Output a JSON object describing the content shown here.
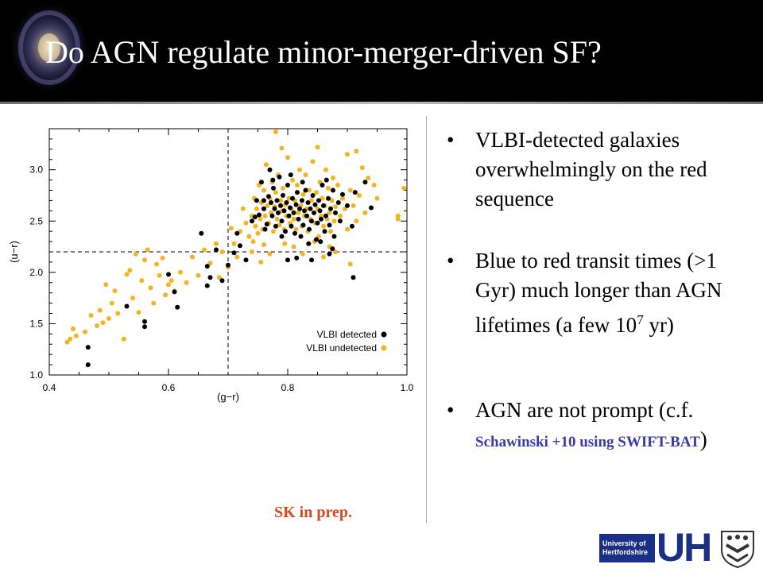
{
  "slide": {
    "title": "Do AGN regulate minor-merger-driven SF?",
    "bullets": [
      {
        "text": "VLBI-detected galaxies overwhelmingly on the red sequence"
      },
      {
        "text_before": "Blue to red transit times (>1 Gyr) much longer than AGN lifetimes (a few 10",
        "superscript": "7",
        "text_after": " yr)"
      },
      {
        "text": "AGN are not prompt (c.f. ",
        "citation": "Schawinski +10 using SWIFT-BAT",
        "text_after": ")"
      }
    ],
    "bullet_glyph": "•",
    "credit": "SK in prep.",
    "logo": {
      "block_line1": "University of",
      "block_line2": "Hertfordshire",
      "letters": "UH",
      "crest_icon": "crest-icon"
    },
    "colors": {
      "header_bg": "#000000",
      "title": "#ffffff",
      "credit": "#d64820",
      "citation": "#3a3aa8",
      "logo_blue": "#1a2f86"
    }
  },
  "chart_data": {
    "type": "scatter",
    "xlabel": "(g−r)",
    "ylabel": "(u−r)",
    "xlim": [
      0.4,
      1.0
    ],
    "ylim": [
      1.0,
      3.4
    ],
    "xticks": [
      0.4,
      0.6,
      0.8,
      1.0
    ],
    "yticks": [
      1.0,
      1.5,
      2.0,
      2.5,
      3.0
    ],
    "xtick_labels": [
      "0.4",
      "0.6",
      "0.8",
      "1.0"
    ],
    "ytick_labels": [
      "1.0",
      "1.5",
      "2.0",
      "2.5",
      "3.0"
    ],
    "reference_lines": {
      "x": 0.7,
      "y": 2.2
    },
    "legend_position": "bottom-right",
    "series": [
      {
        "name": "VLBI detected",
        "color": "#000000",
        "points": [
          [
            0.465,
            1.27
          ],
          [
            0.465,
            1.1
          ],
          [
            0.53,
            1.67
          ],
          [
            0.56,
            1.52
          ],
          [
            0.56,
            1.47
          ],
          [
            0.6,
            1.98
          ],
          [
            0.61,
            1.81
          ],
          [
            0.615,
            1.66
          ],
          [
            0.655,
            2.38
          ],
          [
            0.665,
            2.06
          ],
          [
            0.665,
            1.87
          ],
          [
            0.67,
            1.95
          ],
          [
            0.68,
            2.22
          ],
          [
            0.69,
            1.92
          ],
          [
            0.7,
            2.07
          ],
          [
            0.71,
            2.19
          ],
          [
            0.715,
            2.38
          ],
          [
            0.72,
            2.26
          ],
          [
            0.73,
            2.12
          ],
          [
            0.74,
            2.5
          ],
          [
            0.745,
            2.54
          ],
          [
            0.748,
            2.7
          ],
          [
            0.752,
            2.56
          ],
          [
            0.756,
            2.88
          ],
          [
            0.76,
            2.62
          ],
          [
            0.762,
            2.42
          ],
          [
            0.765,
            2.47
          ],
          [
            0.768,
            2.74
          ],
          [
            0.77,
            3.0
          ],
          [
            0.772,
            2.68
          ],
          [
            0.774,
            2.55
          ],
          [
            0.776,
            2.82
          ],
          [
            0.778,
            2.62
          ],
          [
            0.78,
            2.45
          ],
          [
            0.782,
            2.7
          ],
          [
            0.784,
            2.58
          ],
          [
            0.786,
            2.93
          ],
          [
            0.788,
            2.65
          ],
          [
            0.79,
            2.5
          ],
          [
            0.792,
            2.75
          ],
          [
            0.794,
            2.6
          ],
          [
            0.796,
            2.4
          ],
          [
            0.798,
            2.68
          ],
          [
            0.8,
            2.85
          ],
          [
            0.802,
            2.55
          ],
          [
            0.804,
            2.63
          ],
          [
            0.806,
            2.45
          ],
          [
            0.808,
            2.72
          ],
          [
            0.81,
            2.58
          ],
          [
            0.812,
            2.38
          ],
          [
            0.814,
            2.66
          ],
          [
            0.816,
            2.78
          ],
          [
            0.818,
            2.52
          ],
          [
            0.82,
            2.62
          ],
          [
            0.822,
            2.35
          ],
          [
            0.824,
            2.7
          ],
          [
            0.826,
            2.46
          ],
          [
            0.828,
            2.6
          ],
          [
            0.83,
            2.8
          ],
          [
            0.832,
            2.55
          ],
          [
            0.834,
            2.68
          ],
          [
            0.836,
            2.42
          ],
          [
            0.838,
            2.62
          ],
          [
            0.84,
            2.5
          ],
          [
            0.842,
            2.75
          ],
          [
            0.844,
            2.58
          ],
          [
            0.846,
            2.66
          ],
          [
            0.848,
            2.32
          ],
          [
            0.85,
            2.48
          ],
          [
            0.852,
            2.7
          ],
          [
            0.854,
            2.6
          ],
          [
            0.856,
            2.52
          ],
          [
            0.858,
            2.85
          ],
          [
            0.86,
            2.65
          ],
          [
            0.862,
            2.4
          ],
          [
            0.864,
            2.55
          ],
          [
            0.868,
            2.72
          ],
          [
            0.87,
            2.46
          ],
          [
            0.872,
            2.62
          ],
          [
            0.876,
            2.8
          ],
          [
            0.878,
            2.35
          ],
          [
            0.88,
            2.58
          ],
          [
            0.885,
            2.68
          ],
          [
            0.888,
            2.5
          ],
          [
            0.892,
            2.76
          ],
          [
            0.9,
            2.65
          ],
          [
            0.908,
            2.45
          ],
          [
            0.913,
            2.78
          ],
          [
            0.93,
            2.88
          ],
          [
            0.94,
            2.63
          ],
          [
            0.8,
            2.12
          ],
          [
            0.815,
            2.14
          ],
          [
            0.84,
            2.12
          ],
          [
            0.87,
            2.18
          ],
          [
            0.875,
            2.23
          ],
          [
            0.91,
            1.95
          ],
          [
            0.76,
            2.7
          ],
          [
            0.775,
            2.9
          ],
          [
            0.79,
            2.35
          ],
          [
            0.805,
            2.95
          ],
          [
            0.825,
            2.88
          ],
          [
            0.835,
            2.28
          ],
          [
            0.855,
            2.3
          ],
          [
            0.865,
            2.9
          ]
        ]
      },
      {
        "name": "VLBI undetected",
        "color": "#f4b320",
        "points": [
          [
            0.43,
            1.32
          ],
          [
            0.435,
            1.35
          ],
          [
            0.44,
            1.45
          ],
          [
            0.445,
            1.38
          ],
          [
            0.46,
            1.42
          ],
          [
            0.47,
            1.58
          ],
          [
            0.48,
            1.48
          ],
          [
            0.485,
            1.63
          ],
          [
            0.49,
            1.51
          ],
          [
            0.495,
            1.88
          ],
          [
            0.5,
            1.55
          ],
          [
            0.505,
            1.7
          ],
          [
            0.51,
            1.82
          ],
          [
            0.515,
            1.6
          ],
          [
            0.525,
            1.35
          ],
          [
            0.53,
            1.98
          ],
          [
            0.535,
            2.02
          ],
          [
            0.54,
            1.75
          ],
          [
            0.545,
            2.18
          ],
          [
            0.55,
            1.61
          ],
          [
            0.555,
            1.92
          ],
          [
            0.56,
            2.12
          ],
          [
            0.565,
            2.22
          ],
          [
            0.57,
            1.85
          ],
          [
            0.575,
            1.7
          ],
          [
            0.58,
            2.08
          ],
          [
            0.585,
            1.97
          ],
          [
            0.59,
            2.14
          ],
          [
            0.595,
            1.78
          ],
          [
            0.6,
            1.88
          ],
          [
            0.605,
            1.92
          ],
          [
            0.61,
            1.82
          ],
          [
            0.62,
            2.0
          ],
          [
            0.63,
            1.9
          ],
          [
            0.64,
            2.15
          ],
          [
            0.65,
            1.97
          ],
          [
            0.66,
            2.22
          ],
          [
            0.67,
            2.09
          ],
          [
            0.68,
            2.28
          ],
          [
            0.685,
            1.95
          ],
          [
            0.69,
            2.2
          ],
          [
            0.7,
            2.05
          ],
          [
            0.705,
            2.43
          ],
          [
            0.71,
            2.28
          ],
          [
            0.715,
            2.15
          ],
          [
            0.72,
            2.4
          ],
          [
            0.725,
            2.62
          ],
          [
            0.73,
            2.48
          ],
          [
            0.735,
            2.35
          ],
          [
            0.74,
            2.55
          ],
          [
            0.742,
            2.3
          ],
          [
            0.744,
            2.72
          ],
          [
            0.746,
            2.45
          ],
          [
            0.748,
            2.62
          ],
          [
            0.75,
            2.38
          ],
          [
            0.752,
            2.85
          ],
          [
            0.754,
            2.52
          ],
          [
            0.756,
            2.68
          ],
          [
            0.758,
            2.42
          ],
          [
            0.76,
            2.8
          ],
          [
            0.762,
            2.55
          ],
          [
            0.764,
            3.05
          ],
          [
            0.766,
            2.65
          ],
          [
            0.768,
            2.48
          ],
          [
            0.77,
            2.72
          ],
          [
            0.772,
            2.58
          ],
          [
            0.774,
            2.88
          ],
          [
            0.776,
            2.4
          ],
          [
            0.778,
            2.64
          ],
          [
            0.78,
            2.78
          ],
          [
            0.782,
            2.52
          ],
          [
            0.784,
            2.95
          ],
          [
            0.786,
            2.46
          ],
          [
            0.788,
            2.7
          ],
          [
            0.79,
            2.6
          ],
          [
            0.792,
            2.82
          ],
          [
            0.794,
            2.42
          ],
          [
            0.796,
            2.66
          ],
          [
            0.798,
            2.55
          ],
          [
            0.8,
            3.12
          ],
          [
            0.802,
            2.72
          ],
          [
            0.804,
            2.48
          ],
          [
            0.806,
            2.62
          ],
          [
            0.808,
            2.9
          ],
          [
            0.81,
            2.52
          ],
          [
            0.812,
            2.7
          ],
          [
            0.814,
            2.42
          ],
          [
            0.816,
            2.85
          ],
          [
            0.818,
            2.58
          ],
          [
            0.82,
            3.0
          ],
          [
            0.822,
            2.65
          ],
          [
            0.824,
            2.45
          ],
          [
            0.826,
            2.76
          ],
          [
            0.828,
            2.55
          ],
          [
            0.83,
            2.95
          ],
          [
            0.832,
            2.62
          ],
          [
            0.834,
            2.4
          ],
          [
            0.836,
            2.8
          ],
          [
            0.838,
            2.52
          ],
          [
            0.84,
            2.7
          ],
          [
            0.842,
            3.08
          ],
          [
            0.844,
            2.58
          ],
          [
            0.846,
            2.48
          ],
          [
            0.848,
            2.78
          ],
          [
            0.85,
            2.62
          ],
          [
            0.852,
            2.35
          ],
          [
            0.854,
            2.88
          ],
          [
            0.856,
            2.55
          ],
          [
            0.858,
            2.72
          ],
          [
            0.86,
            2.45
          ],
          [
            0.862,
            2.65
          ],
          [
            0.864,
            3.0
          ],
          [
            0.866,
            2.52
          ],
          [
            0.868,
            2.82
          ],
          [
            0.87,
            2.58
          ],
          [
            0.872,
            2.4
          ],
          [
            0.874,
            2.7
          ],
          [
            0.876,
            2.92
          ],
          [
            0.878,
            2.5
          ],
          [
            0.88,
            2.64
          ],
          [
            0.884,
            2.85
          ],
          [
            0.888,
            2.55
          ],
          [
            0.892,
            2.72
          ],
          [
            0.896,
            2.62
          ],
          [
            0.9,
            2.42
          ],
          [
            0.905,
            2.8
          ],
          [
            0.91,
            2.65
          ],
          [
            0.915,
            2.5
          ],
          [
            0.92,
            2.75
          ],
          [
            0.925,
            3.02
          ],
          [
            0.93,
            2.58
          ],
          [
            0.935,
            2.92
          ],
          [
            0.945,
            2.85
          ],
          [
            0.95,
            2.72
          ],
          [
            0.985,
            2.55
          ],
          [
            0.985,
            2.52
          ],
          [
            0.995,
            2.82
          ],
          [
            0.78,
            3.37
          ],
          [
            0.79,
            3.21
          ],
          [
            0.9,
            3.15
          ],
          [
            0.85,
            3.22
          ],
          [
            0.915,
            3.18
          ],
          [
            0.88,
            2.2
          ],
          [
            0.86,
            2.15
          ],
          [
            0.905,
            2.08
          ],
          [
            0.76,
            2.27
          ],
          [
            0.77,
            2.18
          ],
          [
            0.81,
            2.25
          ],
          [
            0.825,
            2.18
          ],
          [
            0.845,
            2.3
          ],
          [
            0.87,
            2.25
          ],
          [
            0.74,
            2.2
          ],
          [
            0.755,
            2.1
          ],
          [
            0.795,
            2.28
          ]
        ]
      }
    ]
  }
}
